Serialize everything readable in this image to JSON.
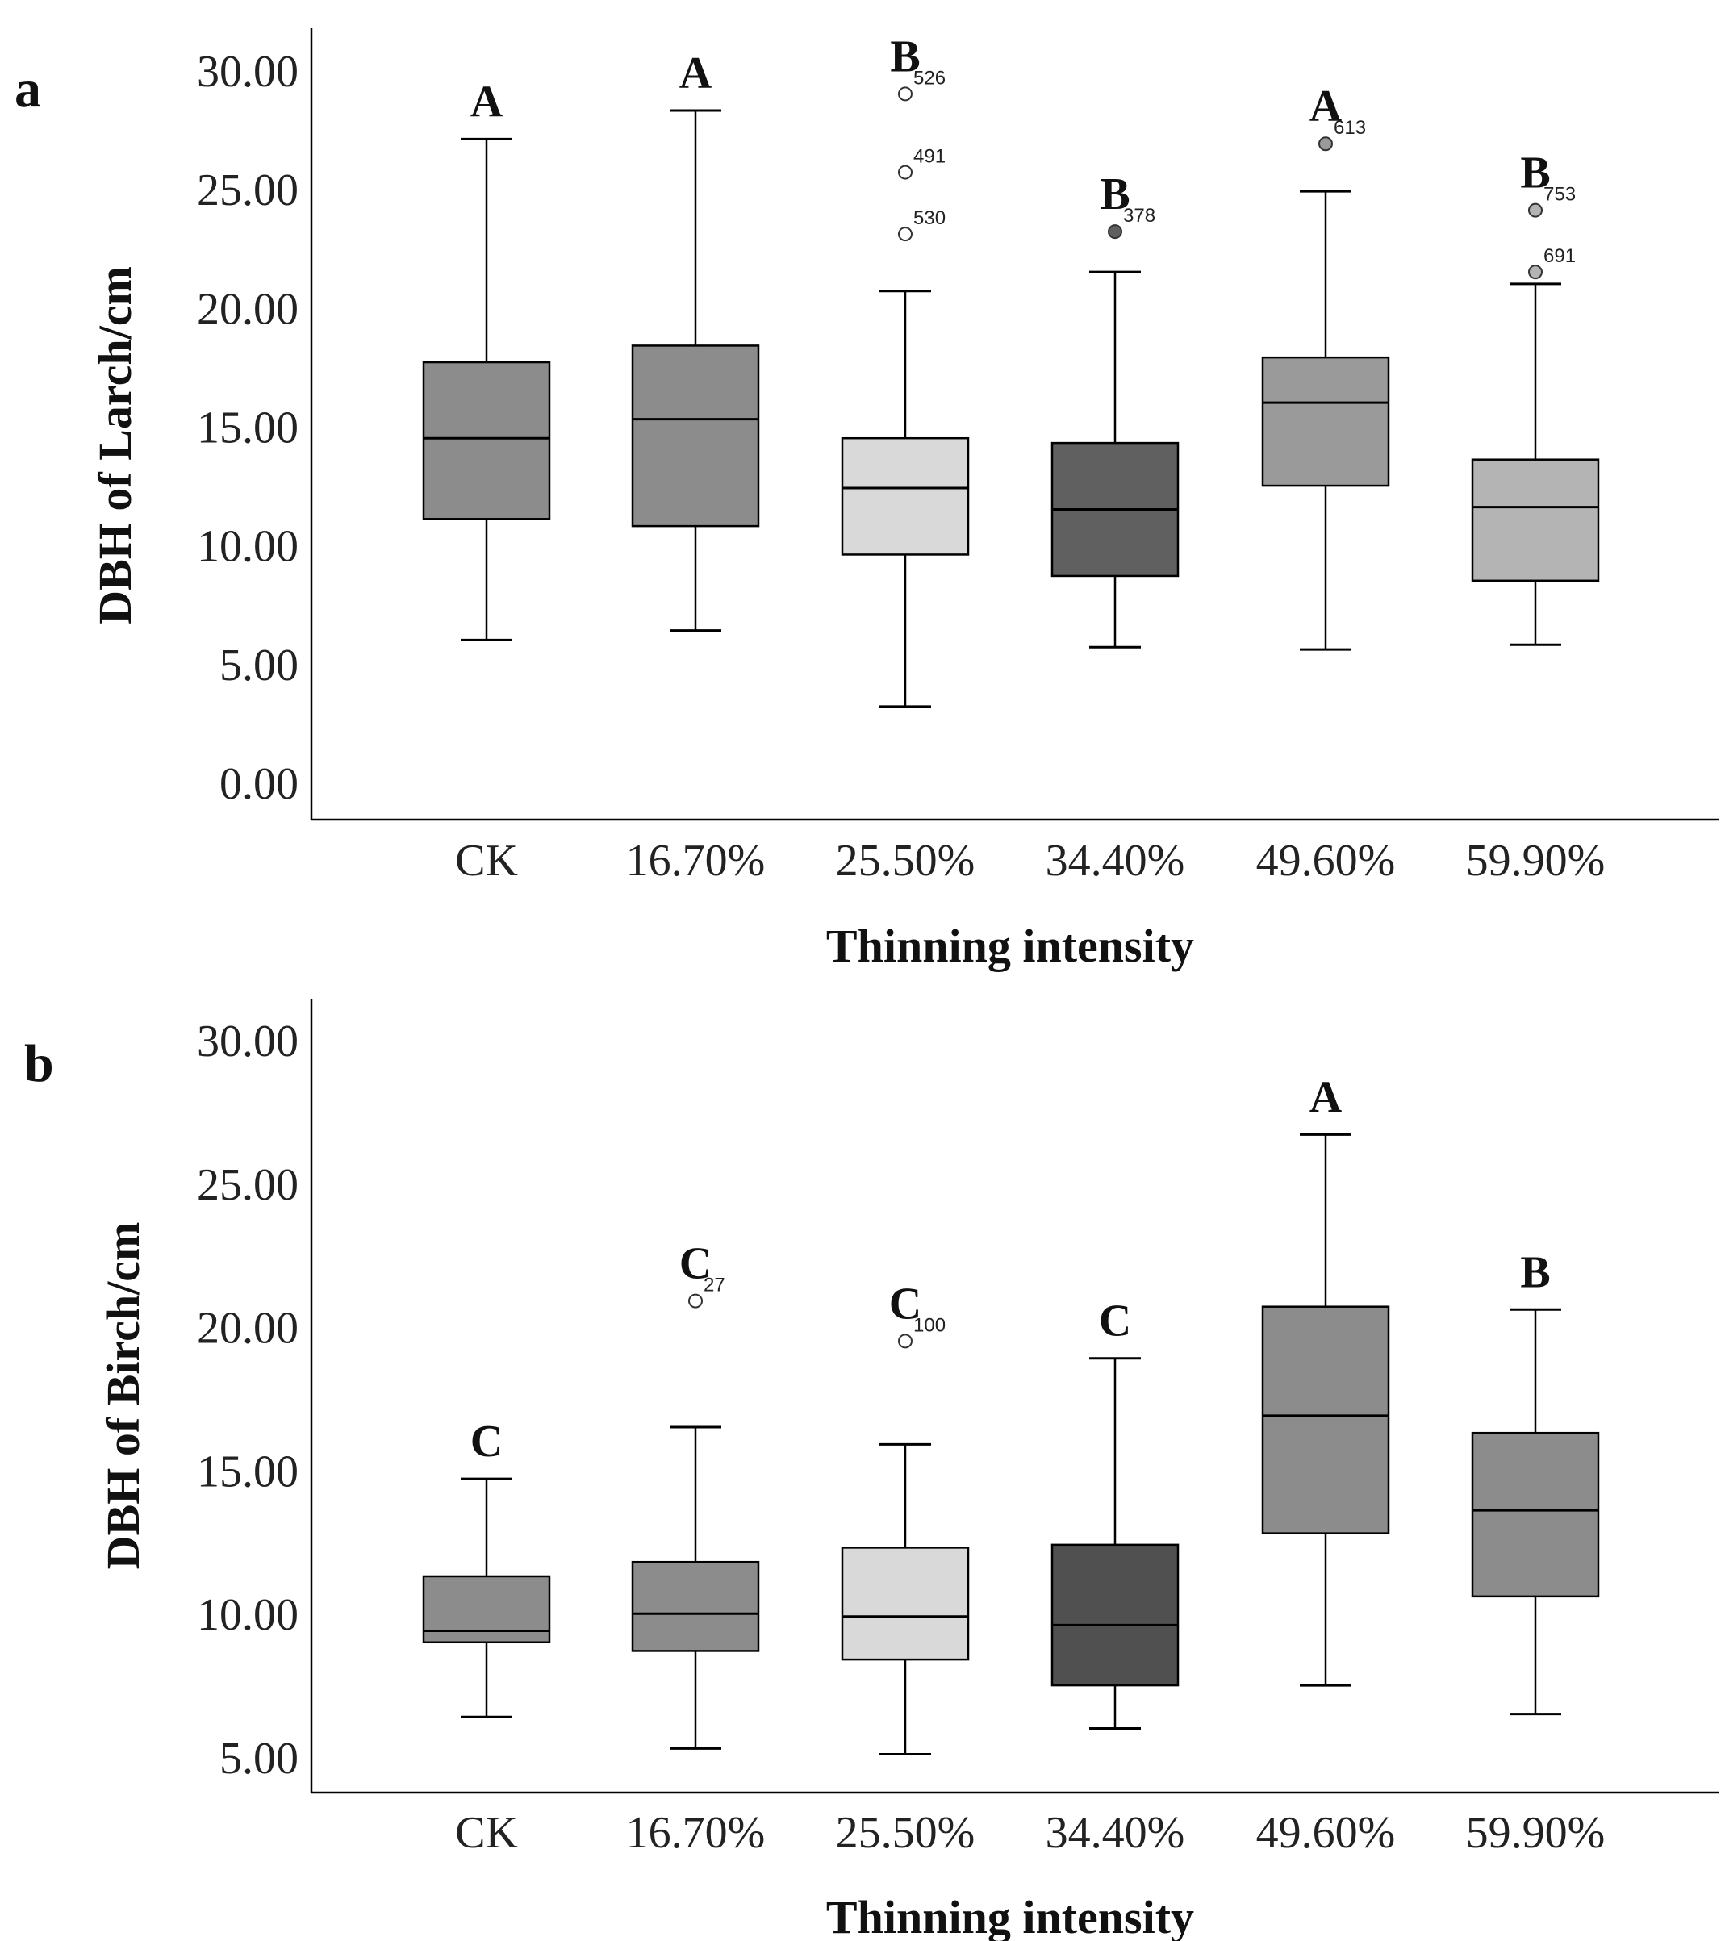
{
  "figure": {
    "panels": [
      {
        "panel_label": "a",
        "xlabel": "Thinning intensity",
        "ylabel": "DBH of Larch/cm"
      },
      {
        "panel_label": "b",
        "xlabel": "Thinning intensity",
        "ylabel": "DBH of Birch/cm"
      }
    ]
  },
  "chart_data": [
    {
      "type": "boxplot",
      "panel": "a",
      "title": "",
      "xlabel": "Thinning intensity",
      "ylabel": "DBH of Larch/cm",
      "ylim": [
        0,
        30
      ],
      "yticks": [
        "0.00",
        "5.00",
        "10.00",
        "15.00",
        "20.00",
        "25.00",
        "30.00"
      ],
      "categories": [
        "CK",
        "16.70%",
        "25.50%",
        "34.40%",
        "49.60%",
        "59.90%"
      ],
      "boxes": [
        {
          "category": "CK",
          "whisker_low": 6.0,
          "q1": 11.1,
          "median": 14.5,
          "q3": 17.7,
          "whisker_high": 27.1,
          "group_letter": "A",
          "fill": "#8c8c8c",
          "outliers": []
        },
        {
          "category": "16.70%",
          "whisker_low": 6.4,
          "q1": 10.8,
          "median": 15.3,
          "q3": 18.4,
          "whisker_high": 28.3,
          "group_letter": "A",
          "fill": "#8c8c8c",
          "outliers": []
        },
        {
          "category": "25.50%",
          "whisker_low": 3.2,
          "q1": 9.6,
          "median": 12.4,
          "q3": 14.5,
          "whisker_high": 20.7,
          "group_letter": "B",
          "fill": "#d9d9d9",
          "outliers": [
            {
              "value": 29.0,
              "label": "526",
              "fill": "#ffffff"
            },
            {
              "value": 25.7,
              "label": "491",
              "fill": "#ffffff"
            },
            {
              "value": 23.1,
              "label": "530",
              "fill": "#ffffff"
            }
          ]
        },
        {
          "category": "34.40%",
          "whisker_low": 5.7,
          "q1": 8.7,
          "median": 11.5,
          "q3": 14.3,
          "whisker_high": 21.5,
          "group_letter": "B",
          "fill": "#606060",
          "outliers": [
            {
              "value": 23.2,
              "label": "378",
              "fill": "#606060"
            }
          ]
        },
        {
          "category": "49.60%",
          "whisker_low": 5.6,
          "q1": 12.5,
          "median": 16.0,
          "q3": 17.9,
          "whisker_high": 24.9,
          "group_letter": "A",
          "fill": "#9a9a9a",
          "outliers": [
            {
              "value": 26.9,
              "label": "613",
              "fill": "#9a9a9a"
            }
          ]
        },
        {
          "category": "59.90%",
          "whisker_low": 5.8,
          "q1": 8.5,
          "median": 11.6,
          "q3": 13.6,
          "whisker_high": 21.0,
          "group_letter": "B",
          "fill": "#b4b4b4",
          "outliers": [
            {
              "value": 24.1,
              "label": "753",
              "fill": "#b4b4b4"
            },
            {
              "value": 21.5,
              "label": "691",
              "fill": "#b4b4b4"
            }
          ]
        }
      ]
    },
    {
      "type": "boxplot",
      "panel": "b",
      "title": "",
      "xlabel": "Thinning intensity",
      "ylabel": "DBH of Birch/cm",
      "ylim": [
        5,
        30
      ],
      "yticks": [
        "5.00",
        "10.00",
        "15.00",
        "20.00",
        "25.00",
        "30.00"
      ],
      "categories": [
        "CK",
        "16.70%",
        "25.50%",
        "34.40%",
        "49.60%",
        "59.90%"
      ],
      "boxes": [
        {
          "category": "CK",
          "whisker_low": 6.4,
          "q1": 9.0,
          "median": 9.4,
          "q3": 11.3,
          "whisker_high": 14.7,
          "group_letter": "C",
          "fill": "#8c8c8c",
          "outliers": []
        },
        {
          "category": "16.70%",
          "whisker_low": 5.3,
          "q1": 8.7,
          "median": 10.0,
          "q3": 11.8,
          "whisker_high": 16.5,
          "group_letter": "C",
          "fill": "#8c8c8c",
          "outliers": [
            {
              "value": 20.9,
              "label": "27",
              "fill": "#ffffff"
            }
          ]
        },
        {
          "category": "25.50%",
          "whisker_low": 5.1,
          "q1": 8.4,
          "median": 9.9,
          "q3": 12.3,
          "whisker_high": 15.9,
          "group_letter": "C",
          "fill": "#d9d9d9",
          "outliers": [
            {
              "value": 19.5,
              "label": "100",
              "fill": "#ffffff"
            }
          ]
        },
        {
          "category": "34.40%",
          "whisker_low": 6.0,
          "q1": 7.5,
          "median": 9.6,
          "q3": 12.4,
          "whisker_high": 18.9,
          "group_letter": "C",
          "fill": "#505050",
          "outliers": []
        },
        {
          "category": "49.60%",
          "whisker_low": 7.5,
          "q1": 12.8,
          "median": 16.9,
          "q3": 20.7,
          "whisker_high": 26.7,
          "group_letter": "A",
          "fill": "#8c8c8c",
          "outliers": []
        },
        {
          "category": "59.90%",
          "whisker_low": 6.5,
          "q1": 10.6,
          "median": 13.6,
          "q3": 16.3,
          "whisker_high": 20.6,
          "group_letter": "B",
          "fill": "#8c8c8c",
          "outliers": []
        }
      ]
    }
  ]
}
